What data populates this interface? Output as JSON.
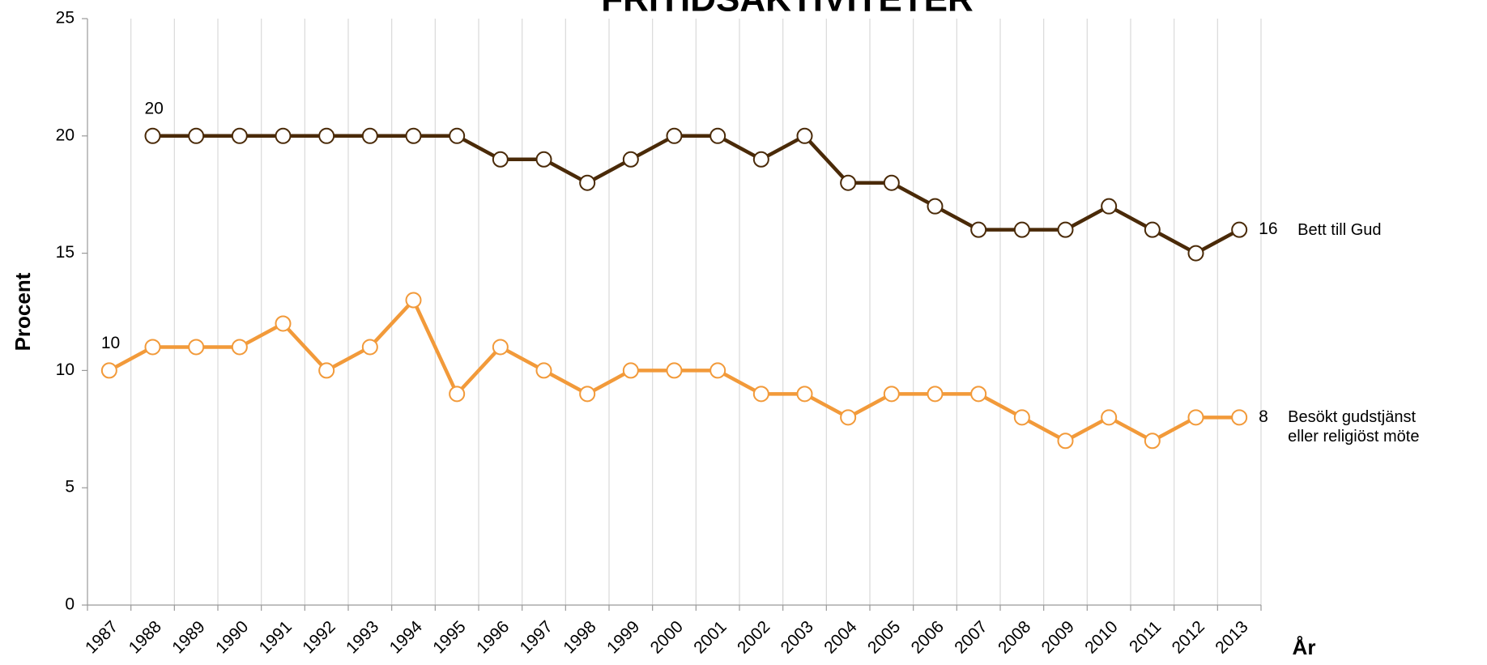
{
  "chart_data": {
    "type": "line",
    "title": "FRITIDSAKTIVITETER",
    "ylabel": "Procent",
    "xlabel": "År",
    "categories": [
      "1987",
      "1988",
      "1989",
      "1990",
      "1991",
      "1992",
      "1993",
      "1994",
      "1995",
      "1996",
      "1997",
      "1998",
      "1999",
      "2000",
      "2001",
      "2002",
      "2003",
      "2004",
      "2005",
      "2006",
      "2007",
      "2008",
      "2009",
      "2010",
      "2011",
      "2012",
      "2013"
    ],
    "series": [
      {
        "name": "Bett till Gud",
        "color": "#4a2a08",
        "values": [
          null,
          20,
          20,
          20,
          20,
          20,
          20,
          20,
          20,
          19,
          19,
          18,
          19,
          20,
          20,
          19,
          20,
          18,
          18,
          17,
          16,
          16,
          16,
          17,
          16,
          15,
          16
        ],
        "value_labels": [
          null,
          "20",
          null,
          null,
          null,
          null,
          null,
          null,
          null,
          null,
          null,
          null,
          null,
          null,
          null,
          null,
          null,
          null,
          null,
          null,
          null,
          null,
          null,
          null,
          null,
          null,
          "16"
        ]
      },
      {
        "name": "Besökt gudstjänst eller religiöst möte",
        "color": "#f29a3a",
        "values": [
          10,
          11,
          11,
          11,
          12,
          10,
          11,
          13,
          9,
          11,
          10,
          9,
          10,
          10,
          10,
          9,
          9,
          8,
          9,
          9,
          9,
          8,
          7,
          8,
          7,
          8,
          8
        ],
        "value_labels": [
          "10",
          null,
          null,
          null,
          null,
          null,
          null,
          null,
          null,
          null,
          null,
          null,
          null,
          null,
          null,
          null,
          null,
          null,
          null,
          null,
          null,
          null,
          null,
          null,
          null,
          null,
          "8"
        ]
      }
    ],
    "ylim": [
      0,
      25
    ],
    "yticks": [
      0,
      5,
      10,
      15,
      20,
      25
    ],
    "grid": true
  }
}
